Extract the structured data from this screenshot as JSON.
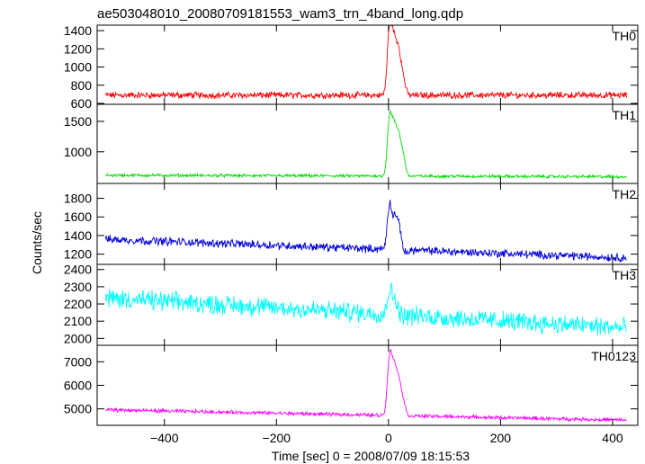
{
  "chart_data": {
    "type": "line",
    "title": "ae503048010_20080709181553_wam3_trn_4band_long.qdp",
    "xlabel": "Time [sec] 0 = 2008/07/09 18:15:53",
    "ylabel": "Counts/sec",
    "xlim": [
      -520,
      445
    ],
    "x_ticks": [
      -400,
      -200,
      0,
      200,
      400
    ],
    "grid": false,
    "panels": [
      {
        "name": "TH0",
        "color": "#ff0000",
        "ylim": [
          590,
          1460
        ],
        "y_ticks": [
          600,
          800,
          1000,
          1200,
          1400
        ],
        "baseline_start": 690,
        "baseline_end": 690,
        "noise": 28,
        "peaks": [
          [
            2,
            1430
          ],
          [
            10,
            1220
          ],
          [
            18,
            1150
          ],
          [
            26,
            880
          ]
        ],
        "x_range": [
          -505,
          425
        ]
      },
      {
        "name": "TH1",
        "color": "#00dd00",
        "ylim": [
          480,
          1780
        ],
        "y_ticks": [
          1000,
          1500
        ],
        "baseline_start": 615,
        "baseline_end": 590,
        "noise": 20,
        "peaks": [
          [
            2,
            1550
          ],
          [
            10,
            1330
          ],
          [
            18,
            1230
          ],
          [
            26,
            950
          ]
        ],
        "x_range": [
          -505,
          425
        ]
      },
      {
        "name": "TH2",
        "color": "#0000dd",
        "ylim": [
          1090,
          1960
        ],
        "y_ticks": [
          1200,
          1400,
          1600,
          1800
        ],
        "baseline_start": 1360,
        "baseline_end": 1160,
        "noise": 35,
        "peaks": [
          [
            2,
            1850
          ],
          [
            12,
            1700
          ],
          [
            20,
            1560
          ],
          [
            30,
            1320
          ]
        ],
        "x_range": [
          -505,
          425
        ]
      },
      {
        "name": "TH3",
        "color": "#00ffff",
        "ylim": [
          1960,
          2430
        ],
        "y_ticks": [
          2000,
          2100,
          2200,
          2300,
          2400
        ],
        "baseline_start": 2235,
        "baseline_end": 2060,
        "noise": 45,
        "peaks": [
          [
            2,
            2380
          ],
          [
            12,
            2330
          ]
        ],
        "x_range": [
          -505,
          425
        ]
      },
      {
        "name": "TH0123",
        "color": "#ff00ff",
        "ylim": [
          4300,
          7700
        ],
        "y_ticks": [
          5000,
          6000,
          7000
        ],
        "baseline_start": 4960,
        "baseline_end": 4520,
        "noise": 60,
        "peaks": [
          [
            2,
            7400
          ],
          [
            10,
            6800
          ],
          [
            18,
            6400
          ],
          [
            26,
            5600
          ]
        ],
        "x_range": [
          -505,
          425
        ]
      }
    ]
  }
}
